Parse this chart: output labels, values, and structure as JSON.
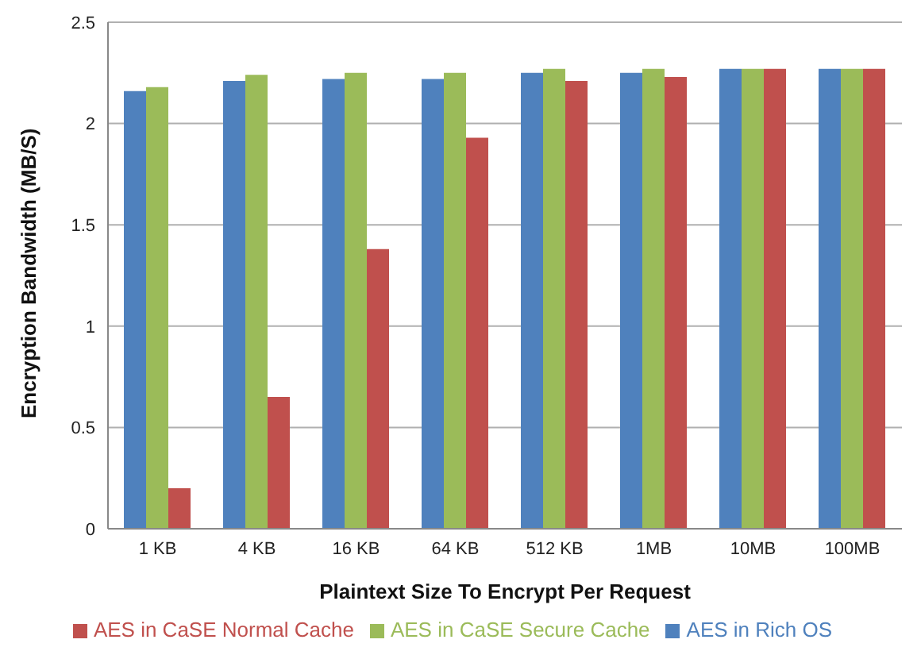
{
  "chart_data": {
    "type": "bar",
    "xlabel": "Plaintext Size To Encrypt Per Request",
    "ylabel": "Encryption Bandwidth (MB/S)",
    "categories": [
      "1 KB",
      "4 KB",
      "16 KB",
      "64 KB",
      "512 KB",
      "1MB",
      "10MB",
      "100MB"
    ],
    "series": [
      {
        "name": "AES in Rich OS",
        "color": "#4f81bd",
        "values": [
          2.16,
          2.21,
          2.22,
          2.22,
          2.25,
          2.25,
          2.27,
          2.27
        ]
      },
      {
        "name": "AES in CaSE Secure Cache",
        "color": "#9bbb59",
        "values": [
          2.18,
          2.24,
          2.25,
          2.25,
          2.27,
          2.27,
          2.27,
          2.27
        ]
      },
      {
        "name": "AES in CaSE Normal Cache",
        "color": "#c0504d",
        "values": [
          0.2,
          0.65,
          1.38,
          1.93,
          2.21,
          2.23,
          2.27,
          2.27
        ]
      }
    ],
    "ylim": [
      0,
      2.5
    ],
    "yticks": [
      0,
      0.5,
      1,
      1.5,
      2,
      2.5
    ],
    "grid": "y",
    "legend": "bottom"
  }
}
